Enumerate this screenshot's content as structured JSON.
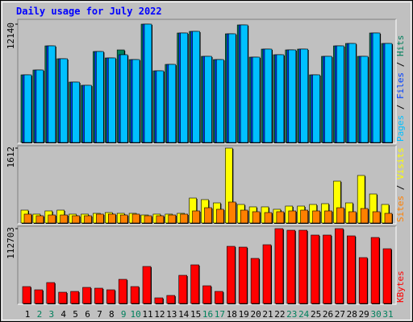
{
  "chart_data": [
    {
      "type": "bar",
      "title": "Daily usage for July 2022",
      "legend_separator": " / ",
      "ylim": [
        0,
        12140
      ],
      "yticks": [
        12140
      ],
      "series": [
        {
          "name": "Hits",
          "color": "#00805c",
          "values": [
            6937,
            7433,
            9910,
            8589,
            6194,
            5864,
            9332,
            8671,
            9497,
            8506,
            12140,
            7350,
            8011,
            11232,
            11397,
            8837,
            8506,
            11149,
            12058,
            8754,
            9580,
            9002,
            9497,
            9580,
            6937,
            8837,
            9910,
            10158,
            8837,
            11232,
            10158
          ]
        },
        {
          "name": "Files",
          "color": "#0040ff",
          "values": [
            6937,
            7433,
            9910,
            8589,
            6194,
            5864,
            9332,
            8671,
            9002,
            8506,
            12140,
            7350,
            8011,
            11232,
            11397,
            8837,
            8506,
            11149,
            12058,
            8754,
            9580,
            9002,
            9497,
            9580,
            6937,
            8837,
            9910,
            10158,
            8837,
            11232,
            10158
          ]
        },
        {
          "name": "Pages",
          "color": "#00c0ff",
          "values": [
            6937,
            7433,
            9910,
            8589,
            6194,
            5864,
            9332,
            8671,
            9002,
            8506,
            12140,
            7350,
            8011,
            11232,
            11397,
            8837,
            8506,
            11149,
            12058,
            8754,
            9580,
            9002,
            9497,
            9580,
            6937,
            8837,
            9910,
            10158,
            8837,
            11232,
            10158
          ]
        }
      ]
    },
    {
      "type": "bar",
      "legend_separator": " / ",
      "ylim": [
        0,
        1612
      ],
      "yticks": [
        1612
      ],
      "series": [
        {
          "name": "Visits",
          "color": "#ffff00",
          "values": [
            277,
            191,
            260,
            277,
            191,
            191,
            208,
            225,
            208,
            208,
            173,
            191,
            191,
            208,
            537,
            503,
            433,
            1612,
            399,
            347,
            347,
            295,
            364,
            364,
            399,
            416,
            901,
            433,
            1023,
            624,
            399
          ]
        },
        {
          "name": "Sites",
          "color": "#ff8000",
          "values": [
            191,
            156,
            173,
            173,
            156,
            156,
            191,
            191,
            173,
            191,
            156,
            156,
            173,
            191,
            260,
            329,
            295,
            451,
            277,
            243,
            225,
            243,
            260,
            277,
            260,
            260,
            329,
            243,
            312,
            243,
            208
          ]
        }
      ]
    },
    {
      "type": "bar",
      "ylim": [
        0,
        112703
      ],
      "yticks": [
        112703
      ],
      "categories": [
        "1",
        "2",
        "3",
        "4",
        "5",
        "6",
        "7",
        "8",
        "9",
        "10",
        "11",
        "12",
        "13",
        "14",
        "15",
        "16",
        "17",
        "18",
        "19",
        "20",
        "21",
        "22",
        "23",
        "24",
        "25",
        "26",
        "27",
        "28",
        "29",
        "30",
        "31"
      ],
      "category_colors": [
        "#000000",
        "#00805c",
        "#00805c",
        "#000000",
        "#000000",
        "#000000",
        "#000000",
        "#000000",
        "#00805c",
        "#00805c",
        "#000000",
        "#000000",
        "#000000",
        "#000000",
        "#000000",
        "#00805c",
        "#00805c",
        "#000000",
        "#000000",
        "#000000",
        "#000000",
        "#000000",
        "#00805c",
        "#00805c",
        "#000000",
        "#000000",
        "#000000",
        "#000000",
        "#000000",
        "#00805c",
        "#00805c"
      ],
      "series": [
        {
          "name": "KBytes",
          "color": "#ff0000",
          "values": [
            25449,
            20601,
            31509,
            16966,
            18178,
            24237,
            23026,
            20601,
            36356,
            25449,
            55746,
            8483,
            12119,
            42415,
            58169,
            26661,
            18178,
            86043,
            84831,
            67865,
            88467,
            112703,
            110279,
            110279,
            103009,
            103009,
            112703,
            101797,
            69076,
            99373,
            82407
          ]
        }
      ]
    }
  ]
}
